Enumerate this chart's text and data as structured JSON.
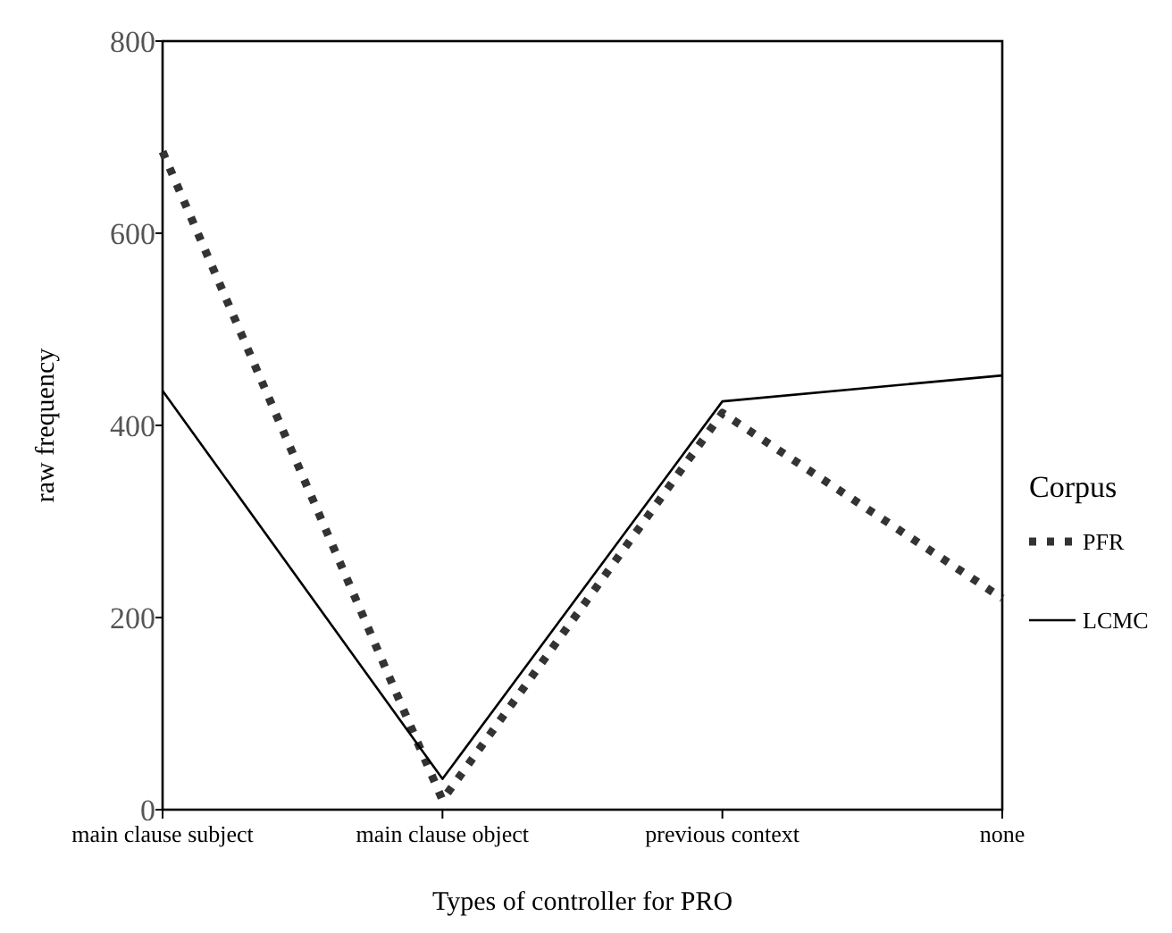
{
  "chart_data": {
    "type": "line",
    "xlabel": "Types of controller for PRO",
    "ylabel": "raw frequency",
    "legend_title": "Corpus",
    "legend": "right",
    "categories": [
      "main clause subject",
      "main clause object",
      "previous  context",
      "none"
    ],
    "series": [
      {
        "name": "PFR",
        "color": "#333333",
        "line_style": "dotted",
        "values": [
          685,
          10,
          413,
          220
        ]
      },
      {
        "name": "LCMC",
        "color": "#000000",
        "line_style": "solid",
        "values": [
          436,
          32,
          425,
          452
        ]
      }
    ],
    "ylim": [
      0,
      800
    ],
    "yticks": [
      0,
      200,
      400,
      600,
      800
    ],
    "grid": false
  }
}
